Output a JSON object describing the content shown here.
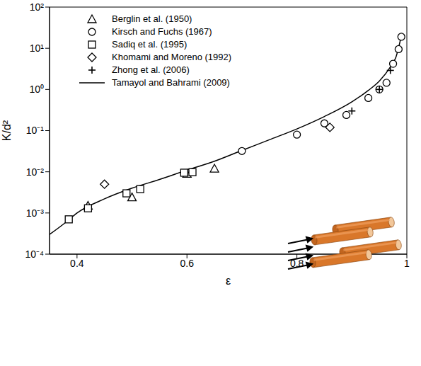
{
  "chart_data": {
    "type": "scatter",
    "x_label": "ε",
    "y_label": "K/d²",
    "log": "y",
    "legend": "top-left",
    "xlim": [
      0.35,
      1.0
    ],
    "xticks": [
      0.4,
      0.6,
      0.8,
      1
    ],
    "ylim": [
      0.0001,
      100
    ],
    "yticks": [
      {
        "value": 0.0001,
        "label": "10⁻⁴"
      },
      {
        "value": 0.001,
        "label": "10⁻³"
      },
      {
        "value": 0.01,
        "label": "10⁻²"
      },
      {
        "value": 0.1,
        "label": "10⁻¹"
      },
      {
        "value": 1,
        "label": "10⁰"
      },
      {
        "value": 10,
        "label": "10¹"
      },
      {
        "value": 100,
        "label": "10²"
      }
    ],
    "series": [
      {
        "name": "Berglin et al. (1950)",
        "type": "scatter",
        "marker": "triangle",
        "color": "#000000",
        "x": [
          0.42,
          0.5,
          0.6,
          0.65
        ],
        "values": [
          0.0015,
          0.0024,
          0.009,
          0.012
        ]
      },
      {
        "name": "Kirsch and Fuchs (1967)",
        "type": "scatter",
        "marker": "circle",
        "color": "#000000",
        "x": [
          0.7,
          0.8,
          0.85,
          0.89,
          0.93,
          0.95,
          0.963,
          0.975,
          0.985,
          0.99
        ],
        "values": [
          0.032,
          0.08,
          0.15,
          0.24,
          0.62,
          1.0,
          1.45,
          4.2,
          9.5,
          19
        ]
      },
      {
        "name": "Sadiq et al. (1995)",
        "type": "scatter",
        "marker": "square",
        "color": "#000000",
        "x": [
          0.385,
          0.42,
          0.49,
          0.515,
          0.595,
          0.61
        ],
        "values": [
          0.0007,
          0.0013,
          0.003,
          0.0038,
          0.0095,
          0.0098
        ]
      },
      {
        "name": "Khomami and Moreno (1992)",
        "type": "scatter",
        "marker": "diamond",
        "color": "#000000",
        "x": [
          0.45,
          0.86
        ],
        "values": [
          0.005,
          0.12
        ]
      },
      {
        "name": "Zhong et al. (2006)",
        "type": "scatter",
        "marker": "plus",
        "color": "#000000",
        "x": [
          0.9,
          0.95,
          0.97
        ],
        "values": [
          0.3,
          1.0,
          2.9
        ]
      },
      {
        "name": "Tamayol and Bahrami (2009)",
        "type": "line",
        "line_style": "solid",
        "color": "#000000",
        "x": [
          0.35,
          0.38,
          0.4,
          0.45,
          0.5,
          0.55,
          0.6,
          0.65,
          0.7,
          0.75,
          0.8,
          0.85,
          0.9,
          0.93,
          0.95,
          0.97,
          0.98,
          0.99
        ],
        "values": [
          0.0003,
          0.0006,
          0.001,
          0.0022,
          0.004,
          0.0065,
          0.011,
          0.018,
          0.033,
          0.06,
          0.11,
          0.22,
          0.5,
          0.95,
          1.6,
          3.5,
          6,
          20
        ]
      }
    ]
  }
}
